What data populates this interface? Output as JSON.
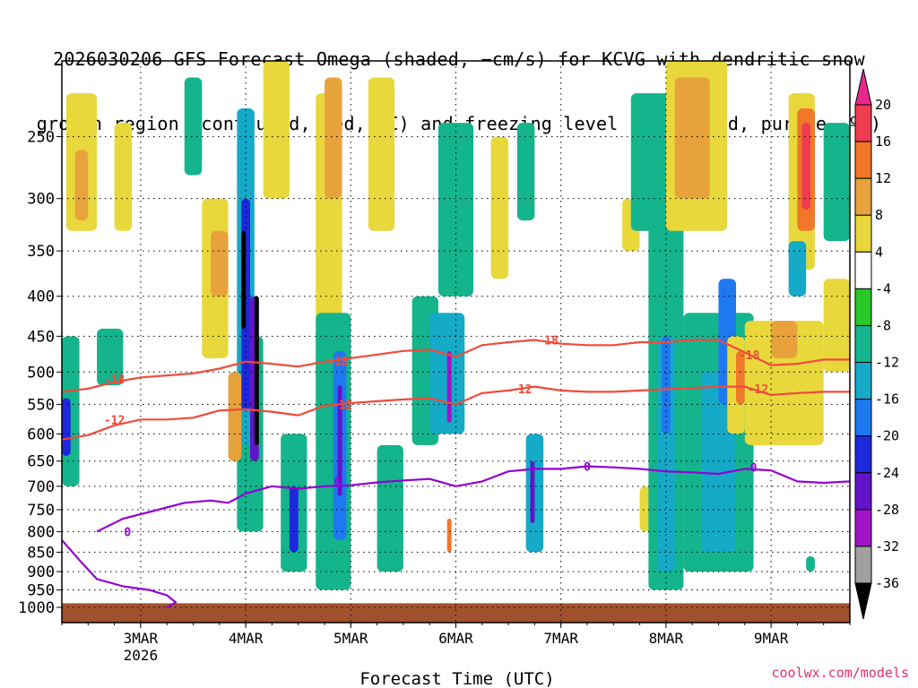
{
  "title_line1": "2026030206 GFS Forecast Omega (shaded, −cm/s) for KCVG with dendritic snow",
  "title_line2": "growth region (contoured, red, ºC) and freezing level (contoured, purple, ºC)",
  "watermark": "coolwx.com/models",
  "colors": {
    "sfc": "#a0522d",
    "temp_contour": "#f04a3c",
    "freezing_contour": "#9400d3",
    "grid": "#000000"
  },
  "chart_data": {
    "type": "heatmap",
    "title": "2026030206 GFS Forecast Omega (shaded, −cm/s) for KCVG with dendritic snow growth region (contoured, red, ºC) and freezing level (contoured, purple, ºC)",
    "xlabel": "Forecast Time (UTC)",
    "ylabel": "",
    "x_range": [
      "2026-03-02T06",
      "2026-03-09T18"
    ],
    "y_scale": "log",
    "y_range_hPa": [
      1000,
      200
    ],
    "y_ticks": [
      250,
      300,
      350,
      400,
      450,
      500,
      550,
      600,
      650,
      700,
      750,
      800,
      850,
      900,
      950,
      1000
    ],
    "x_ticks": [
      {
        "label": "3MAR",
        "sub": "2026",
        "date": "2026-03-03T00"
      },
      {
        "label": "4MAR",
        "sub": "",
        "date": "2026-03-04T00"
      },
      {
        "label": "5MAR",
        "sub": "",
        "date": "2026-03-05T00"
      },
      {
        "label": "6MAR",
        "sub": "",
        "date": "2026-03-06T00"
      },
      {
        "label": "7MAR",
        "sub": "",
        "date": "2026-03-07T00"
      },
      {
        "label": "8MAR",
        "sub": "",
        "date": "2026-03-08T00"
      },
      {
        "label": "9MAR",
        "sub": "",
        "date": "2026-03-09T00"
      }
    ],
    "grid": true,
    "colorbar": {
      "placement": "right",
      "units": "-cm/s",
      "levels": [
        {
          "label": "20",
          "color": "#f03c50"
        },
        {
          "label": "16",
          "color": "#f07828"
        },
        {
          "label": "12",
          "color": "#e8a23c"
        },
        {
          "label": "8",
          "color": "#e8d83c"
        },
        {
          "label": "4",
          "color": "#ffffff"
        },
        {
          "label": "-4",
          "color": "#28c828"
        },
        {
          "label": "-8",
          "color": "#14b48c"
        },
        {
          "label": "-12",
          "color": "#14aac8"
        },
        {
          "label": "-16",
          "color": "#1e78f0"
        },
        {
          "label": "-20",
          "color": "#1e28dc"
        },
        {
          "label": "-24",
          "color": "#6414c8"
        },
        {
          "label": "-28",
          "color": "#a014c8"
        },
        {
          "label": "-32",
          "color": "#a0a0a0"
        },
        {
          "label": "-36",
          "color": "#000000"
        }
      ],
      "top_extend_color": "#e6288c",
      "bottom_extend_color": "#000000"
    },
    "omega_cells": [
      {
        "t0": "2026-03-02T07",
        "t1": "2026-03-02T14",
        "p0": 330,
        "p1": 220,
        "v": 8
      },
      {
        "t0": "2026-03-02T09",
        "t1": "2026-03-02T12",
        "p0": 320,
        "p1": 260,
        "v": 12
      },
      {
        "t0": "2026-03-02T06",
        "t1": "2026-03-02T10",
        "p0": 700,
        "p1": 450,
        "v": -8
      },
      {
        "t0": "2026-03-02T06",
        "t1": "2026-03-02T08",
        "p0": 640,
        "p1": 540,
        "v": -20
      },
      {
        "t0": "2026-03-02T14",
        "t1": "2026-03-02T20",
        "p0": 520,
        "p1": 440,
        "v": -8
      },
      {
        "t0": "2026-03-02T18",
        "t1": "2026-03-02T22",
        "p0": 330,
        "p1": 240,
        "v": 8
      },
      {
        "t0": "2026-03-03T10",
        "t1": "2026-03-03T14",
        "p0": 280,
        "p1": 210,
        "v": -8
      },
      {
        "t0": "2026-03-03T14",
        "t1": "2026-03-03T20",
        "p0": 480,
        "p1": 300,
        "v": 8
      },
      {
        "t0": "2026-03-03T16",
        "t1": "2026-03-03T20",
        "p0": 400,
        "p1": 330,
        "v": 12
      },
      {
        "t0": "2026-03-03T22",
        "t1": "2026-03-04T04",
        "p0": 800,
        "p1": 450,
        "v": -8
      },
      {
        "t0": "2026-03-03T22",
        "t1": "2026-03-04T02",
        "p0": 620,
        "p1": 230,
        "v": -12
      },
      {
        "t0": "2026-03-03T23",
        "t1": "2026-03-04T01",
        "p0": 560,
        "p1": 300,
        "v": -20
      },
      {
        "t0": "2026-03-03T23",
        "t1": "2026-03-04T00",
        "p0": 440,
        "p1": 330,
        "v": -36
      },
      {
        "t0": "2026-03-03T20",
        "t1": "2026-03-03T23",
        "p0": 650,
        "p1": 500,
        "v": 12
      },
      {
        "t0": "2026-03-04T01",
        "t1": "2026-03-04T03",
        "p0": 650,
        "p1": 400,
        "v": -24
      },
      {
        "t0": "2026-03-04T02",
        "t1": "2026-03-04T03",
        "p0": 620,
        "p1": 400,
        "v": -36
      },
      {
        "t0": "2026-03-04T04",
        "t1": "2026-03-04T10",
        "p0": 300,
        "p1": 200,
        "v": 8
      },
      {
        "t0": "2026-03-04T08",
        "t1": "2026-03-04T14",
        "p0": 900,
        "p1": 600,
        "v": -8
      },
      {
        "t0": "2026-03-04T10",
        "t1": "2026-03-04T12",
        "p0": 850,
        "p1": 700,
        "v": -20
      },
      {
        "t0": "2026-03-04T16",
        "t1": "2026-03-04T22",
        "p0": 600,
        "p1": 220,
        "v": 8
      },
      {
        "t0": "2026-03-04T18",
        "t1": "2026-03-04T22",
        "p0": 300,
        "p1": 210,
        "v": 12
      },
      {
        "t0": "2026-03-04T16",
        "t1": "2026-03-05T00",
        "p0": 950,
        "p1": 420,
        "v": -8
      },
      {
        "t0": "2026-03-04T20",
        "t1": "2026-03-04T23",
        "p0": 820,
        "p1": 470,
        "v": -16
      },
      {
        "t0": "2026-03-04T21",
        "t1": "2026-03-04T22",
        "p0": 720,
        "p1": 520,
        "v": -24
      },
      {
        "t0": "2026-03-05T06",
        "t1": "2026-03-05T12",
        "p0": 900,
        "p1": 620,
        "v": -8
      },
      {
        "t0": "2026-03-05T04",
        "t1": "2026-03-05T10",
        "p0": 330,
        "p1": 210,
        "v": 8
      },
      {
        "t0": "2026-03-05T14",
        "t1": "2026-03-05T20",
        "p0": 620,
        "p1": 400,
        "v": -8
      },
      {
        "t0": "2026-03-05T18",
        "t1": "2026-03-06T02",
        "p0": 600,
        "p1": 420,
        "v": -12
      },
      {
        "t0": "2026-03-05T22",
        "t1": "2026-03-05T23",
        "p0": 580,
        "p1": 470,
        "v": -28
      },
      {
        "t0": "2026-03-05T20",
        "t1": "2026-03-06T04",
        "p0": 400,
        "p1": 240,
        "v": -8
      },
      {
        "t0": "2026-03-05T22",
        "t1": "2026-03-05T23",
        "p0": 850,
        "p1": 770,
        "v": 16
      },
      {
        "t0": "2026-03-06T08",
        "t1": "2026-03-06T12",
        "p0": 380,
        "p1": 250,
        "v": 8
      },
      {
        "t0": "2026-03-06T16",
        "t1": "2026-03-06T20",
        "p0": 850,
        "p1": 600,
        "v": -12
      },
      {
        "t0": "2026-03-06T17",
        "t1": "2026-03-06T18",
        "p0": 780,
        "p1": 650,
        "v": -24
      },
      {
        "t0": "2026-03-06T14",
        "t1": "2026-03-06T18",
        "p0": 320,
        "p1": 240,
        "v": -8
      },
      {
        "t0": "2026-03-07T14",
        "t1": "2026-03-07T18",
        "p0": 350,
        "p1": 300,
        "v": 8
      },
      {
        "t0": "2026-03-07T16",
        "t1": "2026-03-08T02",
        "p0": 330,
        "p1": 220,
        "v": -8
      },
      {
        "t0": "2026-03-07T18",
        "t1": "2026-03-07T22",
        "p0": 800,
        "p1": 700,
        "v": 8
      },
      {
        "t0": "2026-03-07T20",
        "t1": "2026-03-08T04",
        "p0": 950,
        "p1": 280,
        "v": -8
      },
      {
        "t0": "2026-03-07T22",
        "t1": "2026-03-08T02",
        "p0": 900,
        "p1": 450,
        "v": -12
      },
      {
        "t0": "2026-03-07T23",
        "t1": "2026-03-08T01",
        "p0": 600,
        "p1": 450,
        "v": -16
      },
      {
        "t0": "2026-03-08T00",
        "t1": "2026-03-08T14",
        "p0": 330,
        "p1": 200,
        "v": 8
      },
      {
        "t0": "2026-03-08T02",
        "t1": "2026-03-08T10",
        "p0": 300,
        "p1": 210,
        "v": 12
      },
      {
        "t0": "2026-03-08T04",
        "t1": "2026-03-08T20",
        "p0": 900,
        "p1": 420,
        "v": -8
      },
      {
        "t0": "2026-03-08T08",
        "t1": "2026-03-08T16",
        "p0": 850,
        "p1": 500,
        "v": -12
      },
      {
        "t0": "2026-03-08T12",
        "t1": "2026-03-08T16",
        "p0": 550,
        "p1": 380,
        "v": -16
      },
      {
        "t0": "2026-03-08T14",
        "t1": "2026-03-08T18",
        "p0": 600,
        "p1": 450,
        "v": 8
      },
      {
        "t0": "2026-03-08T16",
        "t1": "2026-03-08T18",
        "p0": 550,
        "p1": 470,
        "v": 16
      },
      {
        "t0": "2026-03-08T18",
        "t1": "2026-03-09T12",
        "p0": 620,
        "p1": 430,
        "v": 8
      },
      {
        "t0": "2026-03-09T00",
        "t1": "2026-03-09T06",
        "p0": 480,
        "p1": 430,
        "v": 12
      },
      {
        "t0": "2026-03-09T04",
        "t1": "2026-03-09T10",
        "p0": 370,
        "p1": 220,
        "v": 8
      },
      {
        "t0": "2026-03-09T06",
        "t1": "2026-03-09T10",
        "p0": 330,
        "p1": 230,
        "v": 16
      },
      {
        "t0": "2026-03-09T07",
        "t1": "2026-03-09T09",
        "p0": 310,
        "p1": 240,
        "v": 20
      },
      {
        "t0": "2026-03-09T04",
        "t1": "2026-03-09T08",
        "p0": 400,
        "p1": 340,
        "v": -12
      },
      {
        "t0": "2026-03-09T12",
        "t1": "2026-03-09T18",
        "p0": 340,
        "p1": 240,
        "v": -8
      },
      {
        "t0": "2026-03-09T12",
        "t1": "2026-03-09T18",
        "p0": 500,
        "p1": 380,
        "v": 8
      },
      {
        "t0": "2026-03-09T08",
        "t1": "2026-03-09T10",
        "p0": 900,
        "p1": 860,
        "v": -8
      }
    ],
    "series": [
      {
        "name": "-18",
        "color": "#f04a3c",
        "points": [
          [
            "2026-03-02T06",
            530
          ],
          [
            "2026-03-02T12",
            525
          ],
          [
            "2026-03-02T18",
            515
          ],
          [
            "2026-03-03T00",
            508
          ],
          [
            "2026-03-03T06",
            505
          ],
          [
            "2026-03-03T12",
            502
          ],
          [
            "2026-03-03T18",
            495
          ],
          [
            "2026-03-04T00",
            485
          ],
          [
            "2026-03-04T06",
            488
          ],
          [
            "2026-03-04T12",
            492
          ],
          [
            "2026-03-04T18",
            485
          ],
          [
            "2026-03-05T00",
            480
          ],
          [
            "2026-03-05T06",
            475
          ],
          [
            "2026-03-05T12",
            470
          ],
          [
            "2026-03-05T18",
            468
          ],
          [
            "2026-03-06T00",
            478
          ],
          [
            "2026-03-06T06",
            462
          ],
          [
            "2026-03-06T12",
            458
          ],
          [
            "2026-03-06T18",
            455
          ],
          [
            "2026-03-07T00",
            460
          ],
          [
            "2026-03-07T06",
            462
          ],
          [
            "2026-03-07T12",
            462
          ],
          [
            "2026-03-07T18",
            458
          ],
          [
            "2026-03-08T00",
            458
          ],
          [
            "2026-03-08T06",
            455
          ],
          [
            "2026-03-08T12",
            455
          ],
          [
            "2026-03-08T18",
            472
          ],
          [
            "2026-03-09T00",
            490
          ],
          [
            "2026-03-09T06",
            488
          ],
          [
            "2026-03-09T12",
            482
          ],
          [
            "2026-03-09T18",
            482
          ]
        ],
        "labels": [
          [
            "2026-03-02T18",
            510
          ],
          [
            "2026-03-04T21",
            484
          ],
          [
            "2026-03-06T21",
            455
          ],
          [
            "2026-03-08T19",
            475
          ]
        ]
      },
      {
        "name": "-12",
        "color": "#f04a3c",
        "points": [
          [
            "2026-03-02T06",
            610
          ],
          [
            "2026-03-02T12",
            602
          ],
          [
            "2026-03-02T18",
            585
          ],
          [
            "2026-03-03T00",
            575
          ],
          [
            "2026-03-03T06",
            575
          ],
          [
            "2026-03-03T12",
            572
          ],
          [
            "2026-03-03T18",
            560
          ],
          [
            "2026-03-04T00",
            558
          ],
          [
            "2026-03-04T06",
            562
          ],
          [
            "2026-03-04T12",
            568
          ],
          [
            "2026-03-04T18",
            552
          ],
          [
            "2026-03-05T00",
            548
          ],
          [
            "2026-03-05T06",
            545
          ],
          [
            "2026-03-05T12",
            542
          ],
          [
            "2026-03-05T18",
            540
          ],
          [
            "2026-03-06T00",
            550
          ],
          [
            "2026-03-06T06",
            532
          ],
          [
            "2026-03-06T12",
            528
          ],
          [
            "2026-03-06T18",
            522
          ],
          [
            "2026-03-07T00",
            528
          ],
          [
            "2026-03-07T06",
            530
          ],
          [
            "2026-03-07T12",
            530
          ],
          [
            "2026-03-07T18",
            528
          ],
          [
            "2026-03-08T00",
            526
          ],
          [
            "2026-03-08T06",
            524
          ],
          [
            "2026-03-08T12",
            522
          ],
          [
            "2026-03-08T18",
            522
          ],
          [
            "2026-03-09T00",
            535
          ],
          [
            "2026-03-09T06",
            532
          ],
          [
            "2026-03-09T12",
            530
          ],
          [
            "2026-03-09T18",
            530
          ]
        ],
        "labels": [
          [
            "2026-03-02T18",
            575
          ],
          [
            "2026-03-04T22",
            550
          ],
          [
            "2026-03-06T15",
            525
          ],
          [
            "2026-03-08T21",
            525
          ]
        ]
      },
      {
        "name": "0",
        "color": "#9400d3",
        "points": [
          [
            "2026-03-02T06",
            820
          ],
          [
            "2026-03-02T10",
            870
          ],
          [
            "2026-03-02T14",
            920
          ],
          [
            "2026-03-02T20",
            940
          ],
          [
            "2026-03-03T02",
            950
          ],
          [
            "2026-03-03T06",
            965
          ],
          [
            "2026-03-03T08",
            985
          ],
          [
            "2026-03-03T06",
            1000
          ]
        ],
        "labels": []
      },
      {
        "name": "0",
        "color": "#9400d3",
        "points": [
          [
            "2026-03-02T14",
            800
          ],
          [
            "2026-03-02T20",
            770
          ],
          [
            "2026-03-03T04",
            750
          ],
          [
            "2026-03-03T10",
            735
          ],
          [
            "2026-03-03T16",
            730
          ],
          [
            "2026-03-03T20",
            735
          ],
          [
            "2026-03-04T00",
            715
          ],
          [
            "2026-03-04T06",
            700
          ],
          [
            "2026-03-04T12",
            705
          ],
          [
            "2026-03-04T18",
            700
          ],
          [
            "2026-03-05T00",
            698
          ],
          [
            "2026-03-05T06",
            692
          ],
          [
            "2026-03-05T12",
            688
          ],
          [
            "2026-03-05T18",
            685
          ],
          [
            "2026-03-06T00",
            700
          ],
          [
            "2026-03-06T06",
            690
          ],
          [
            "2026-03-06T12",
            670
          ],
          [
            "2026-03-06T18",
            665
          ],
          [
            "2026-03-07T00",
            665
          ],
          [
            "2026-03-07T06",
            660
          ],
          [
            "2026-03-07T12",
            662
          ],
          [
            "2026-03-07T18",
            665
          ],
          [
            "2026-03-08T00",
            670
          ],
          [
            "2026-03-08T06",
            672
          ],
          [
            "2026-03-08T12",
            675
          ],
          [
            "2026-03-08T18",
            665
          ],
          [
            "2026-03-09T00",
            668
          ],
          [
            "2026-03-09T06",
            690
          ],
          [
            "2026-03-09T12",
            693
          ],
          [
            "2026-03-09T18",
            690
          ]
        ],
        "labels": [
          [
            "2026-03-02T21",
            800
          ],
          [
            "2026-03-04T21",
            690
          ],
          [
            "2026-03-07T06",
            660
          ],
          [
            "2026-03-08T20",
            662
          ]
        ]
      }
    ],
    "terrain": {
      "color": "#a0522d",
      "p_top": 988
    }
  },
  "axis": {
    "xlabel": "Forecast Time (UTC)"
  }
}
